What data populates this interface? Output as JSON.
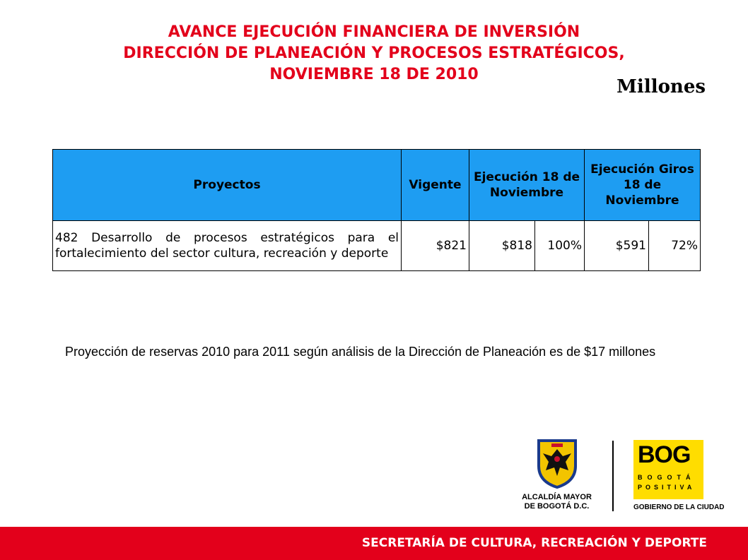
{
  "header": {
    "title_line1": "AVANCE EJECUCIÓN FINANCIERA DE INVERSIÓN",
    "title_line2": "DIRECCIÓN DE PLANEACIÓN Y PROCESOS ESTRATÉGICOS,",
    "title_line3": "NOVIEMBRE 18 DE 2010",
    "units": "Millones"
  },
  "table": {
    "headers": {
      "proyectos": "Proyectos",
      "vigente": "Vigente",
      "ejecucion": "Ejecución 18 de Noviembre",
      "giros": "Ejecución Giros 18 de Noviembre"
    },
    "rows": [
      {
        "proyecto": "482 Desarrollo de procesos estratégicos para el fortalecimiento del sector cultura, recreación y deporte",
        "vigente": "$821",
        "ejecucion_valor": "$818",
        "ejecucion_pct": "100%",
        "giros_valor": "$591",
        "giros_pct": "72%"
      }
    ]
  },
  "note": "Proyección de reservas 2010 para 2011 según análisis de la Dirección de Planeación es de $17 millones",
  "logos": {
    "alcaldia_line1": "ALCALDÍA MAYOR",
    "alcaldia_line2": "DE BOGOTÁ D.C.",
    "bog_mark": "BOG",
    "bog_sub1": "BOGOTÁ",
    "bog_sub2": "POSITIVA",
    "bog_gov": "GOBIERNO DE LA CIUDAD"
  },
  "footer": {
    "text": "SECRETARÍA DE CULTURA, RECREACIÓN Y DEPORTE"
  },
  "colors": {
    "title_red": "#e3001b",
    "header_blue": "#1e9df2",
    "logo_yellow": "#ffdd00"
  }
}
